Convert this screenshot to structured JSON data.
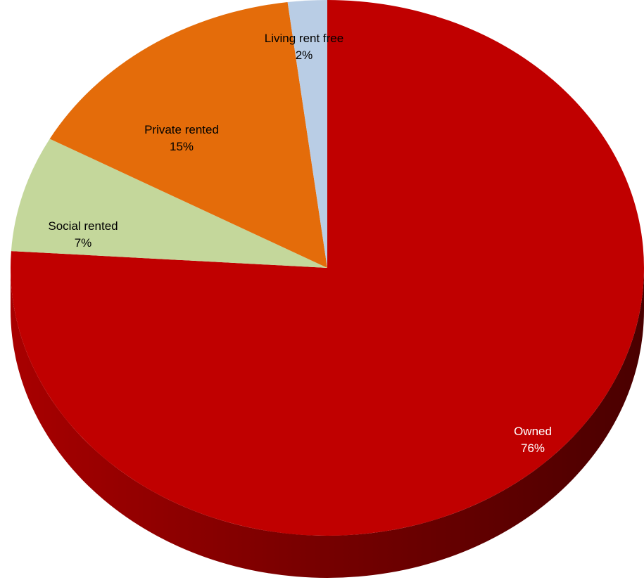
{
  "chart_data": {
    "type": "pie",
    "title": "",
    "slices": [
      {
        "label": "Owned",
        "value": 76,
        "pct_label": "76%",
        "color": "#c00000"
      },
      {
        "label": "Social rented",
        "value": 7,
        "pct_label": "7%",
        "color": "#c4d79b"
      },
      {
        "label": "Private rented",
        "value": 15,
        "pct_label": "15%",
        "color": "#e46c0a"
      },
      {
        "label": "Living rent free",
        "value": 2,
        "pct_label": "2%",
        "color": "#b9cde5"
      }
    ],
    "start": "12 o'clock",
    "direction": "clockwise",
    "style": "3d-tilted",
    "legend": "none"
  }
}
